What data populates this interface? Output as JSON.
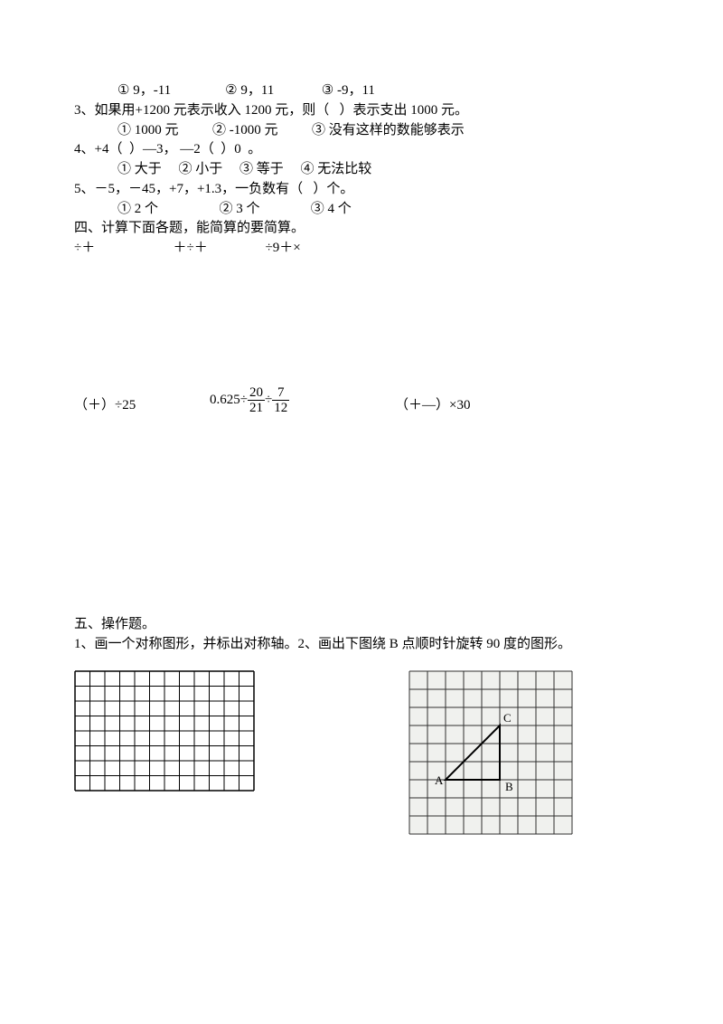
{
  "q2_options": {
    "indent": "        ",
    "a": "① 9，-11",
    "gap1": "                ",
    "b": "② 9，11",
    "gap2": "              ",
    "c": "③ -9，11"
  },
  "q3": {
    "text": "3、如果用+1200 元表示收入 1200 元，则（   ）表示支出 1000 元。",
    "opt_a": "① 1000 元",
    "gap1": "          ",
    "opt_b": "② -1000 元",
    "gap2": "          ",
    "opt_c": "③ 没有这样的数能够表示"
  },
  "q4": {
    "text": "4、+4（  ）—3， —2（  ）0  。",
    "opt_a": "① 大于",
    "gap1": "     ",
    "opt_b": "② 小于",
    "gap2": "     ",
    "opt_c": "③ 等于",
    "gap3": "     ",
    "opt_d": "④ 无法比较"
  },
  "q5": {
    "text": "5、－5，－45，+7，+1.3，一负数有（   ）个。",
    "opt_a": "① 2 个",
    "gap1": "                  ",
    "opt_b": "② 3 个",
    "gap2": "               ",
    "opt_c": "③ 4 个"
  },
  "section4": {
    "title": "四、计算下面各题，能简算的要简算。",
    "row1_a": "÷＋",
    "row1_gap1": "                       ",
    "row1_b": "＋÷＋",
    "row1_gap2": "                 ",
    "row1_c": "÷9＋×",
    "row2_a": "（＋）÷25",
    "row2_b_pre": "0.625÷",
    "frac1_num": "20",
    "frac1_den": "21",
    "row2_b_mid": "÷",
    "frac2_num": "7",
    "frac2_den": "12",
    "row2_c": "（＋—）×30"
  },
  "section5": {
    "title": "五、操作题。",
    "text": "1、画一个对称图形，并标出对称轴。2、画出下图绕 B 点顺时针旋转 90 度的图形。"
  },
  "grid1": {
    "cols": 12,
    "rows": 8,
    "cell": 16.5,
    "stroke": "#000000",
    "stroke_width": 1,
    "outer_width": 1.5,
    "background": "#ffffff"
  },
  "grid2": {
    "cols": 9,
    "rows": 9,
    "cell": 20,
    "stroke": "#2f2f2f",
    "stroke_width": 1,
    "background": "#f0f1ee",
    "triangle": {
      "A": [
        2,
        6
      ],
      "B": [
        5,
        6
      ],
      "C": [
        5,
        3
      ],
      "labels": {
        "A": "A",
        "B": "B",
        "C": "C"
      },
      "line_width": 2,
      "line_color": "#000000"
    }
  }
}
